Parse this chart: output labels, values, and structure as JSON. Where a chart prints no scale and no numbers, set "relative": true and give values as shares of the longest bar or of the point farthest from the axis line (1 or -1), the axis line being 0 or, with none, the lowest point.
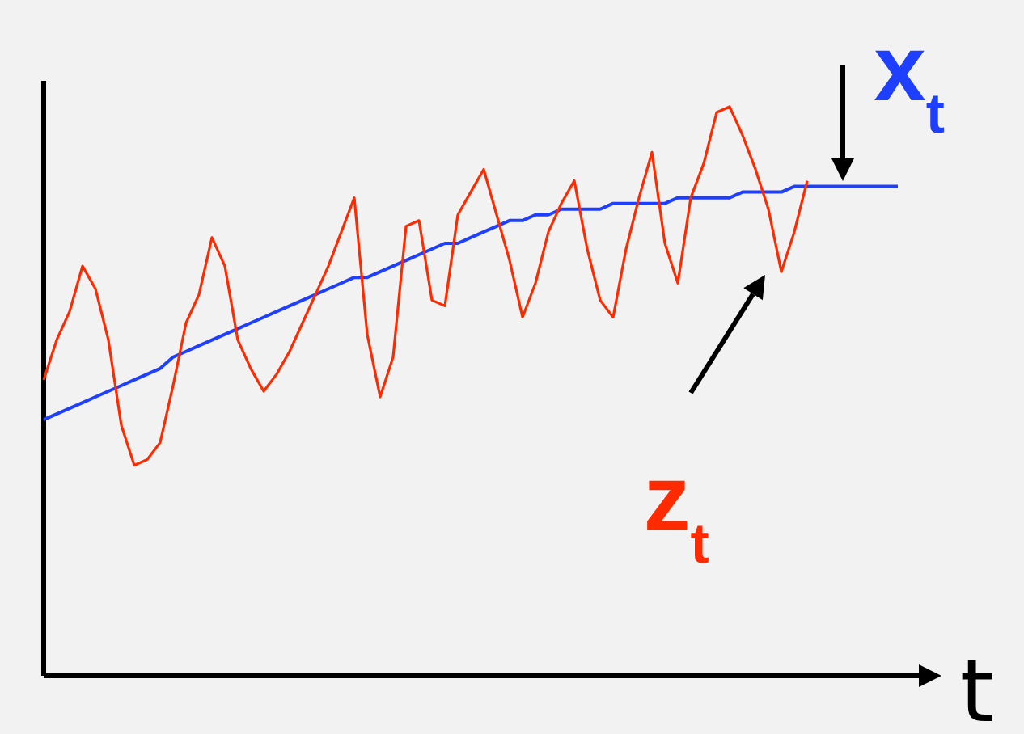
{
  "chart_data": {
    "type": "line",
    "relative": true,
    "xlabel": "t",
    "marker": "none",
    "categories": [
      null,
      null,
      null,
      null,
      null,
      null,
      null,
      null,
      null,
      null,
      null,
      null,
      null,
      null,
      null,
      null,
      null,
      null,
      null,
      null,
      null,
      null,
      null,
      null,
      null,
      null,
      null,
      null,
      null,
      null,
      null,
      null,
      null,
      null,
      null,
      null,
      null,
      null,
      null,
      null,
      null,
      null,
      null,
      null,
      null,
      null,
      null,
      null,
      null,
      null,
      null,
      null,
      null,
      null,
      null,
      null,
      null,
      null,
      null,
      null,
      null,
      null,
      null,
      null,
      null,
      null,
      null
    ],
    "series": [
      {
        "name": "x$_{t}$",
        "color": "#1f3fff",
        "values": [
          0.45,
          0.46,
          0.47,
          0.48,
          0.49,
          0.5,
          0.51,
          0.52,
          0.53,
          0.54,
          0.56,
          0.57,
          0.58,
          0.59,
          0.6,
          0.61,
          0.62,
          0.63,
          0.64,
          0.65,
          0.66,
          0.67,
          0.68,
          0.69,
          0.7,
          0.7,
          0.71,
          0.72,
          0.73,
          0.74,
          0.75,
          0.76,
          0.76,
          0.77,
          0.78,
          0.79,
          0.8,
          0.8,
          0.81,
          0.81,
          0.82,
          0.82,
          0.82,
          0.82,
          0.83,
          0.83,
          0.83,
          0.83,
          0.83,
          0.84,
          0.84,
          0.84,
          0.84,
          0.84,
          0.85,
          0.85,
          0.85,
          0.85,
          0.86,
          0.86,
          0.86,
          0.86,
          0.86,
          0.86,
          0.86,
          0.86,
          0.86
        ]
      },
      {
        "name": "z$_{t}$",
        "color": "#ff2a00",
        "values": [
          0.52,
          0.59,
          0.64,
          0.72,
          0.68,
          0.59,
          0.44,
          0.37,
          0.38,
          0.41,
          0.51,
          0.62,
          0.67,
          0.77,
          0.72,
          0.59,
          0.54,
          0.5,
          0.53,
          0.57,
          0.62,
          0.67,
          0.72,
          0.78,
          0.84,
          0.6,
          0.49,
          0.56,
          0.79,
          0.8,
          0.66,
          0.65,
          0.81,
          0.85,
          0.89,
          0.81,
          0.73,
          0.63,
          0.69,
          0.78,
          0.83,
          0.87,
          0.75,
          0.66,
          0.63,
          0.75,
          0.84,
          0.92,
          0.76,
          0.69,
          0.84,
          0.9,
          0.99,
          1.0,
          0.95,
          0.89,
          0.82,
          0.71,
          0.78,
          0.87,
          null,
          null,
          null,
          null,
          null,
          null,
          null
        ]
      }
    ]
  }
}
